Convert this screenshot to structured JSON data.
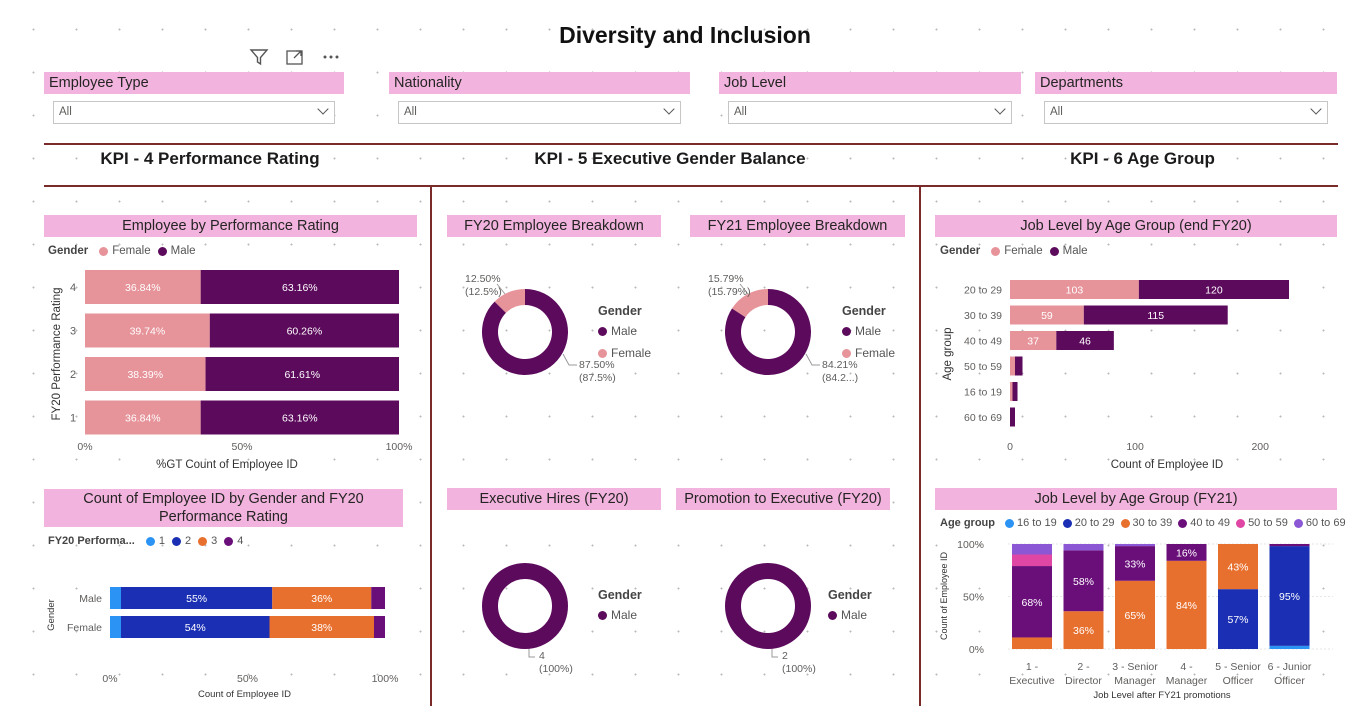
{
  "page": {
    "title": "Diversity and Inclusion"
  },
  "icons": {
    "filter": "filter-icon",
    "focus": "focus-mode-icon",
    "more": "more-options-icon"
  },
  "colors": {
    "accent_bg": "#f2b4de",
    "female": "#e6939a",
    "male": "#5c0a5c",
    "divider": "#7b2a2a",
    "age_16_19": "#2b93f3",
    "age_20_29": "#1a2fb3",
    "age_30_39": "#e8702f",
    "age_40_49": "#6a0e7a",
    "age_50_59": "#e046a4",
    "age_60_69": "#8b57d4"
  },
  "slicers": [
    {
      "title": "Employee Type",
      "value": "All"
    },
    {
      "title": "Nationality",
      "value": "All"
    },
    {
      "title": "Job Level",
      "value": "All"
    },
    {
      "title": "Departments",
      "value": "All"
    }
  ],
  "kpis": {
    "k4": "KPI - 4 Performance Rating",
    "k5": "KPI - 5 Executive Gender Balance",
    "k6": "KPI - 6 Age Group"
  },
  "gender_legend": {
    "title": "Gender",
    "female": "Female",
    "male": "Male"
  },
  "perf_chart": {
    "title": "Employee by Performance Rating",
    "chart_data": {
      "type": "bar",
      "stacked": "100%",
      "categories": [
        "4",
        "3",
        "2",
        "1"
      ],
      "series": [
        {
          "name": "Female",
          "values": [
            36.84,
            39.74,
            38.39,
            36.84
          ],
          "labels": [
            "36.84%",
            "39.74%",
            "38.39%",
            "36.84%"
          ]
        },
        {
          "name": "Male",
          "values": [
            63.16,
            60.26,
            61.61,
            63.16
          ],
          "labels": [
            "63.16%",
            "60.26%",
            "61.61%",
            "63.16%"
          ]
        }
      ],
      "ylabel": "FY20 Performance Rating",
      "xlabel": "%GT Count of Employee ID",
      "xticks": [
        "0%",
        "50%",
        "100%"
      ],
      "xlim": [
        0,
        100
      ]
    }
  },
  "gender_perf_chart": {
    "title": "Count of Employee ID by Gender and FY20 Performance Rating",
    "legend_title": "FY20 Performa...",
    "legend_items": [
      "1",
      "2",
      "3",
      "4"
    ],
    "chart_data": {
      "type": "bar",
      "stacked": "100%",
      "categories": [
        "Male",
        "Female"
      ],
      "series": [
        {
          "name": "1",
          "values": [
            4,
            4
          ]
        },
        {
          "name": "2",
          "values": [
            55,
            54
          ],
          "labels": [
            "55%",
            "54%"
          ]
        },
        {
          "name": "3",
          "values": [
            36,
            38
          ],
          "labels": [
            "36%",
            "38%"
          ]
        },
        {
          "name": "4",
          "values": [
            5,
            4
          ]
        }
      ],
      "ylabel": "Gender",
      "xlabel": "Count of Employee ID",
      "xticks": [
        "0%",
        "50%",
        "100%"
      ]
    }
  },
  "donuts": [
    {
      "title": "FY20 Employee Breakdown",
      "legend": [
        "Male",
        "Female"
      ],
      "chart_data": {
        "type": "pie",
        "slices": [
          {
            "name": "Female",
            "value": 12.5
          },
          {
            "name": "Male",
            "value": 87.5
          }
        ]
      },
      "label_female": "12.50%",
      "label_female_2": "(12.5%)",
      "label_male": "87.50%",
      "label_male_2": "(87.5%)"
    },
    {
      "title": "FY21 Employee Breakdown",
      "legend": [
        "Male",
        "Female"
      ],
      "chart_data": {
        "type": "pie",
        "slices": [
          {
            "name": "Female",
            "value": 15.79
          },
          {
            "name": "Male",
            "value": 84.21
          }
        ]
      },
      "label_female": "15.79%",
      "label_female_2": "(15.79%)",
      "label_male": "84.21%",
      "label_male_2": "(84.2...)"
    },
    {
      "title": "Executive Hires (FY20)",
      "legend": [
        "Male"
      ],
      "chart_data": {
        "type": "pie",
        "slices": [
          {
            "name": "Male",
            "value": 4
          }
        ]
      },
      "label_male": "4",
      "label_male_2": "(100%)"
    },
    {
      "title": "Promotion to Executive (FY20)",
      "legend": [
        "Male"
      ],
      "chart_data": {
        "type": "pie",
        "slices": [
          {
            "name": "Male",
            "value": 2
          }
        ]
      },
      "label_male": "2",
      "label_male_2": "(100%)"
    }
  ],
  "age_fy20_chart": {
    "title": "Job Level by Age Group (end FY20)",
    "chart_data": {
      "type": "bar",
      "stacked": true,
      "categories": [
        "20 to 29",
        "30 to 39",
        "40 to 49",
        "50 to 59",
        "16 to 19",
        "60 to 69"
      ],
      "series": [
        {
          "name": "Female",
          "values": [
            103,
            59,
            37,
            4,
            2,
            0
          ]
        },
        {
          "name": "Male",
          "values": [
            120,
            115,
            46,
            6,
            4,
            4
          ]
        }
      ],
      "ylabel": "Age group",
      "xlabel": "Count of Employee ID",
      "xticks": [
        "0",
        "100",
        "200"
      ],
      "xlim": [
        0,
        250
      ]
    }
  },
  "age_fy21_chart": {
    "title": "Job Level by Age Group (FY21)",
    "legend_title": "Age group",
    "legend_items": [
      "16 to 19",
      "20 to 29",
      "30 to 39",
      "40 to 49",
      "50 to 59",
      "60 to 69"
    ],
    "chart_data": {
      "type": "bar",
      "orientation": "vertical",
      "stacked": "100%",
      "categories": [
        "1 - Executive",
        "2 - Director",
        "3 - Senior Manager",
        "4 - Manager",
        "5 - Senior Officer",
        "6 - Junior Officer"
      ],
      "series": [
        {
          "name": "16 to 19",
          "values": [
            0,
            0,
            0,
            0,
            0,
            3
          ]
        },
        {
          "name": "20 to 29",
          "values": [
            0,
            0,
            0,
            0,
            57,
            95
          ],
          "labels": [
            "",
            "",
            "",
            "",
            "57%",
            "95%"
          ]
        },
        {
          "name": "30 to 39",
          "values": [
            11,
            36,
            65,
            84,
            43,
            0
          ],
          "labels": [
            "",
            "36%",
            "65%",
            "84%",
            "43%",
            ""
          ]
        },
        {
          "name": "40 to 49",
          "values": [
            68,
            58,
            33,
            16,
            0,
            2
          ],
          "labels": [
            "68%",
            "58%",
            "33%",
            "16%",
            "",
            ""
          ]
        },
        {
          "name": "50 to 59",
          "values": [
            11,
            0,
            0,
            0,
            0,
            0
          ]
        },
        {
          "name": "60 to 69",
          "values": [
            10,
            6,
            2,
            0,
            0,
            0
          ]
        }
      ],
      "ylabel": "Count of Employee ID",
      "xlabel": "Job Level after FY21 promotions",
      "yticks": [
        "100%",
        "50%",
        "0%"
      ]
    }
  }
}
